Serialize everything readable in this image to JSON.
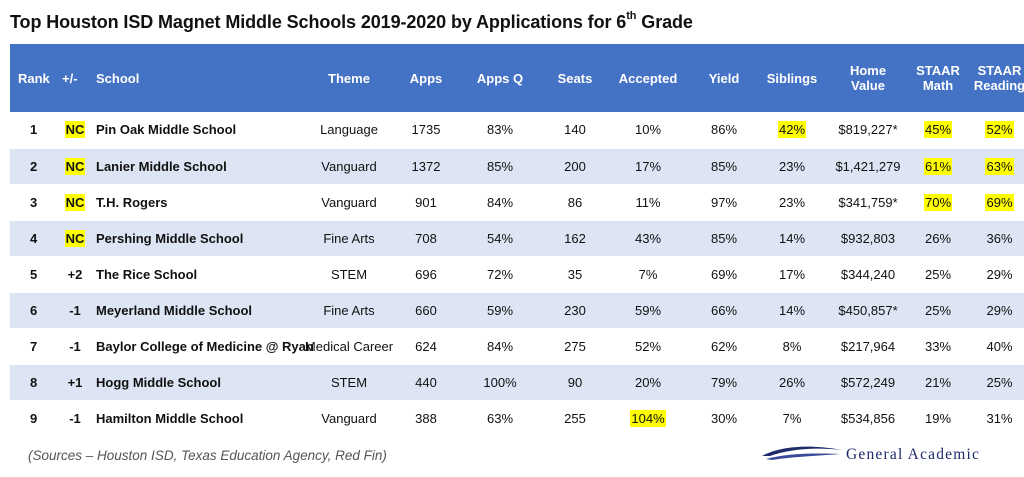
{
  "title": {
    "prefix": "Top Houston ISD Magnet Middle Schools 2019-2020 by Applications for 6",
    "sup": "th",
    "suffix": " Grade"
  },
  "headers": {
    "rank": "Rank",
    "change": "+/-",
    "school": "School",
    "theme": "Theme",
    "apps": "Apps",
    "apps_q": "Apps Q",
    "seats": "Seats",
    "accepted": "Accepted",
    "yield": "Yield",
    "siblings": "Siblings",
    "home_value_1": "Home",
    "home_value_2": "Value",
    "staar_math_1": "STAAR",
    "staar_math_2": "Math",
    "staar_reading_1": "STAAR",
    "staar_reading_2": "Reading"
  },
  "rows": [
    {
      "rank": "1",
      "change": "NC",
      "school": "Pin Oak Middle School",
      "theme": "Language",
      "apps": "1735",
      "apps_q": "83%",
      "seats": "140",
      "accepted": "10%",
      "yield": "86%",
      "siblings": "42%",
      "home_value": "$819,227*",
      "staar_math": "45%",
      "staar_reading": "52%"
    },
    {
      "rank": "2",
      "change": "NC",
      "school": "Lanier Middle School",
      "theme": "Vanguard",
      "apps": "1372",
      "apps_q": "85%",
      "seats": "200",
      "accepted": "17%",
      "yield": "85%",
      "siblings": "23%",
      "home_value": "$1,421,279",
      "staar_math": "61%",
      "staar_reading": "63%"
    },
    {
      "rank": "3",
      "change": "NC",
      "school": "T.H. Rogers",
      "theme": "Vanguard",
      "apps": "901",
      "apps_q": "84%",
      "seats": "86",
      "accepted": "11%",
      "yield": "97%",
      "siblings": "23%",
      "home_value": "$341,759*",
      "staar_math": "70%",
      "staar_reading": "69%"
    },
    {
      "rank": "4",
      "change": "NC",
      "school": "Pershing Middle School",
      "theme": "Fine Arts",
      "apps": "708",
      "apps_q": "54%",
      "seats": "162",
      "accepted": "43%",
      "yield": "85%",
      "siblings": "14%",
      "home_value": "$932,803",
      "staar_math": "26%",
      "staar_reading": "36%"
    },
    {
      "rank": "5",
      "change": "+2",
      "school": "The Rice School",
      "theme": "STEM",
      "apps": "696",
      "apps_q": "72%",
      "seats": "35",
      "accepted": "7%",
      "yield": "69%",
      "siblings": "17%",
      "home_value": "$344,240",
      "staar_math": "25%",
      "staar_reading": "29%"
    },
    {
      "rank": "6",
      "change": "-1",
      "school": "Meyerland Middle School",
      "theme": "Fine Arts",
      "apps": "660",
      "apps_q": "59%",
      "seats": "230",
      "accepted": "59%",
      "yield": "66%",
      "siblings": "14%",
      "home_value": "$450,857*",
      "staar_math": "25%",
      "staar_reading": "29%"
    },
    {
      "rank": "7",
      "change": "-1",
      "school": "Baylor College of Medicine @ Ryan",
      "theme": "Medical Career",
      "apps": "624",
      "apps_q": "84%",
      "seats": "275",
      "accepted": "52%",
      "yield": "62%",
      "siblings": "8%",
      "home_value": "$217,964",
      "staar_math": "33%",
      "staar_reading": "40%"
    },
    {
      "rank": "8",
      "change": "+1",
      "school": "Hogg Middle School",
      "theme": "STEM",
      "apps": "440",
      "apps_q": "100%",
      "seats": "90",
      "accepted": "20%",
      "yield": "79%",
      "siblings": "26%",
      "home_value": "$572,249",
      "staar_math": "21%",
      "staar_reading": "25%"
    },
    {
      "rank": "9",
      "change": "-1",
      "school": "Hamilton Middle School",
      "theme": "Vanguard",
      "apps": "388",
      "apps_q": "63%",
      "seats": "255",
      "accepted": "104%",
      "yield": "30%",
      "siblings": "7%",
      "home_value": "$534,856",
      "staar_math": "19%",
      "staar_reading": "31%"
    }
  ],
  "highlights": {
    "color": "#ffff00",
    "cells": [
      "0.change",
      "0.siblings",
      "0.staar_math",
      "0.staar_reading",
      "1.change",
      "1.staar_math",
      "1.staar_reading",
      "2.change",
      "2.staar_math",
      "2.staar_reading",
      "3.change",
      "8.accepted"
    ]
  },
  "colors": {
    "header_bg": "#4472c4",
    "band_bg": "#dde4f3",
    "logo_blue": "#1f2a6b"
  },
  "sources": "(Sources – Houston ISD, Texas Education Agency, Red Fin)",
  "logo": {
    "text": "General Academic",
    "icon": "swoosh-logo-icon"
  }
}
